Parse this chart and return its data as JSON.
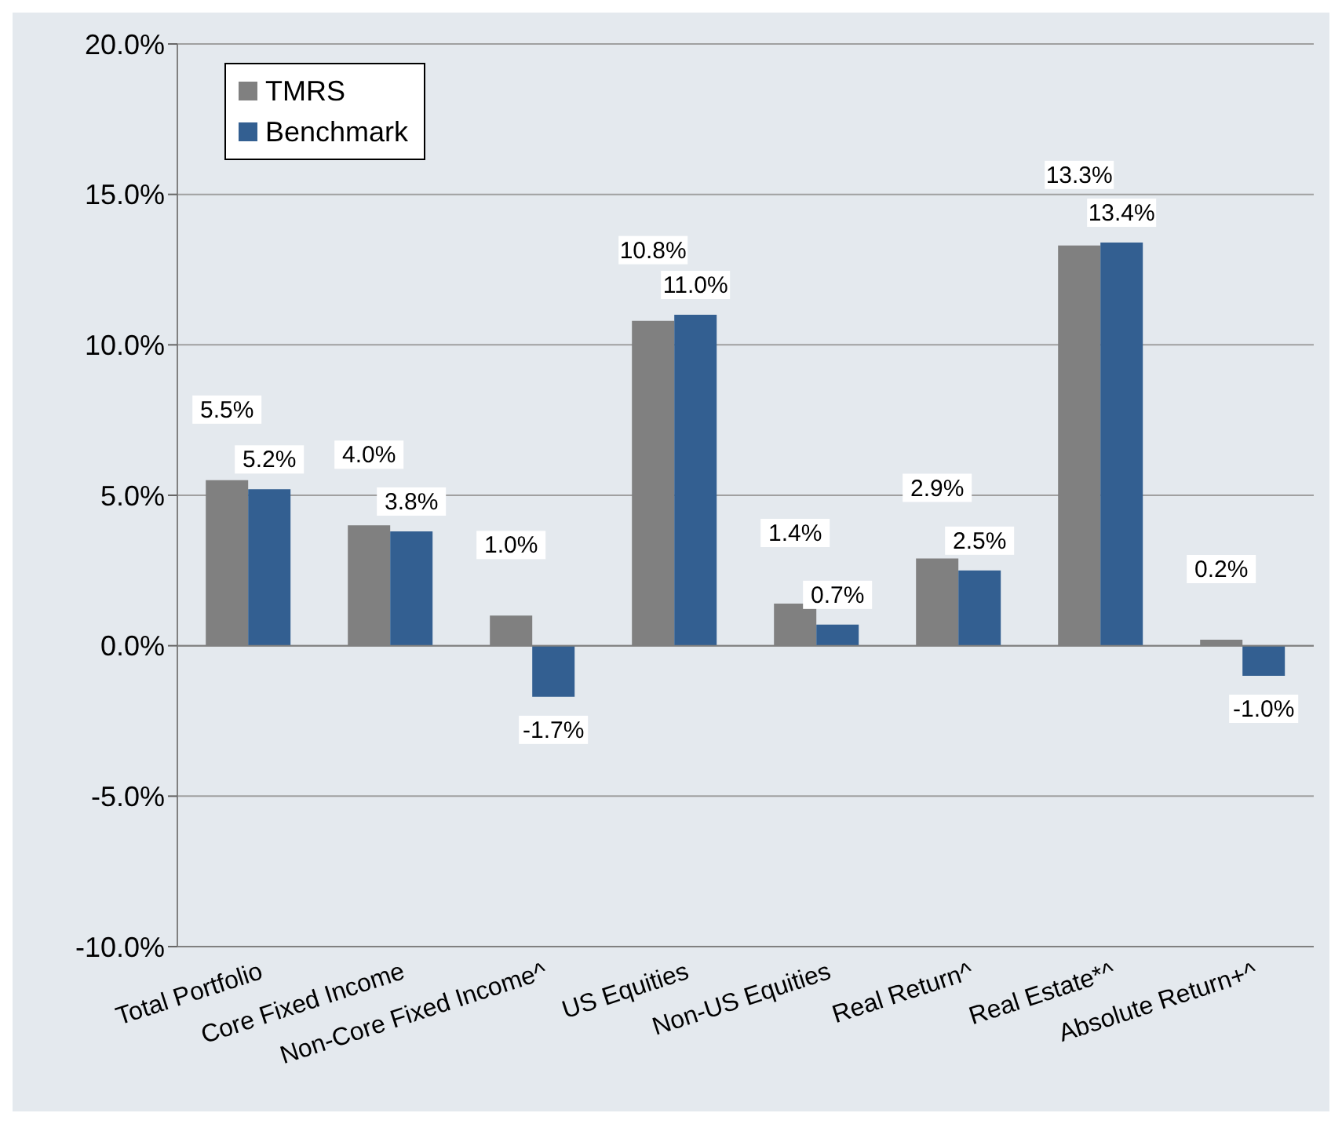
{
  "chart_data": {
    "type": "bar",
    "categories": [
      "Total Portfolio",
      "Core Fixed Income",
      "Non-Core Fixed Income^",
      "US Equities",
      "Non-US Equities",
      "Real Return^",
      "Real Estate*^",
      "Absolute Return+^"
    ],
    "series": [
      {
        "name": "TMRS",
        "color": "#808080",
        "values": [
          5.5,
          4.0,
          1.0,
          10.8,
          1.4,
          2.9,
          13.3,
          0.2
        ],
        "value_labels": [
          "5.5%",
          "4.0%",
          "1.0%",
          "10.8%",
          "1.4%",
          "2.9%",
          "13.3%",
          "0.2%"
        ]
      },
      {
        "name": "Benchmark",
        "color": "#335f91",
        "values": [
          5.2,
          3.8,
          -1.7,
          11.0,
          0.7,
          2.5,
          13.4,
          -1.0
        ],
        "value_labels": [
          "5.2%",
          "3.8%",
          "-1.7%",
          "11.0%",
          "0.7%",
          "2.5%",
          "13.4%",
          "-1.0%"
        ]
      }
    ],
    "ylim": [
      -10,
      20
    ],
    "yticks": [
      {
        "value": -10,
        "label": "-10.0%"
      },
      {
        "value": -5,
        "label": "-5.0%"
      },
      {
        "value": 0,
        "label": "0.0%"
      },
      {
        "value": 5,
        "label": "5.0%"
      },
      {
        "value": 10,
        "label": "10.0%"
      },
      {
        "value": 15,
        "label": "15.0%"
      },
      {
        "value": 20,
        "label": "20.0%"
      }
    ],
    "grid": "y",
    "legend": "top left"
  }
}
